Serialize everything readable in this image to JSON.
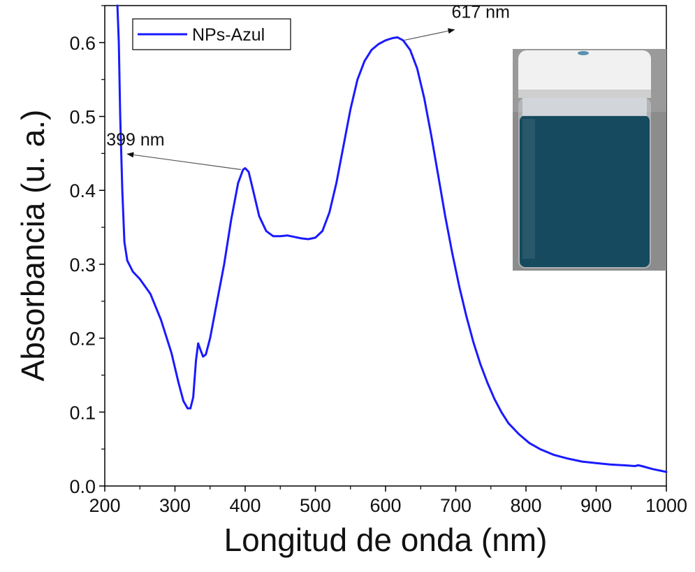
{
  "chart_data": {
    "type": "line",
    "xlabel": "Longitud de onda (nm)",
    "ylabel": "Absorbancia (u. a.)",
    "xlim": [
      200,
      1000
    ],
    "ylim": [
      0.0,
      0.65
    ],
    "x_ticks": [
      200,
      300,
      400,
      500,
      600,
      700,
      800,
      900,
      1000
    ],
    "x_tick_labels": [
      "200",
      "300",
      "400",
      "500",
      "600",
      "700",
      "800",
      "900",
      "1000"
    ],
    "y_ticks": [
      0.0,
      0.1,
      0.2,
      0.3,
      0.4,
      0.5,
      0.6
    ],
    "y_tick_labels": [
      "0.0",
      "0.1",
      "0.2",
      "0.3",
      "0.4",
      "0.5",
      "0.6"
    ],
    "grid": false,
    "legend_position": "top-left",
    "series": [
      {
        "name": "NPs-Azul",
        "color": "#1a1aff",
        "points": [
          [
            218,
            0.66
          ],
          [
            220,
            0.6
          ],
          [
            222,
            0.5
          ],
          [
            225,
            0.4
          ],
          [
            228,
            0.33
          ],
          [
            232,
            0.305
          ],
          [
            240,
            0.29
          ],
          [
            250,
            0.28
          ],
          [
            265,
            0.26
          ],
          [
            280,
            0.225
          ],
          [
            295,
            0.18
          ],
          [
            305,
            0.14
          ],
          [
            312,
            0.115
          ],
          [
            318,
            0.105
          ],
          [
            322,
            0.105
          ],
          [
            326,
            0.12
          ],
          [
            330,
            0.17
          ],
          [
            333,
            0.193
          ],
          [
            336,
            0.185
          ],
          [
            340,
            0.175
          ],
          [
            344,
            0.178
          ],
          [
            350,
            0.2
          ],
          [
            360,
            0.25
          ],
          [
            370,
            0.3
          ],
          [
            380,
            0.36
          ],
          [
            390,
            0.41
          ],
          [
            397,
            0.428
          ],
          [
            400,
            0.43
          ],
          [
            405,
            0.425
          ],
          [
            410,
            0.405
          ],
          [
            420,
            0.365
          ],
          [
            430,
            0.345
          ],
          [
            440,
            0.338
          ],
          [
            450,
            0.338
          ],
          [
            460,
            0.339
          ],
          [
            470,
            0.337
          ],
          [
            480,
            0.335
          ],
          [
            490,
            0.334
          ],
          [
            500,
            0.336
          ],
          [
            510,
            0.345
          ],
          [
            520,
            0.37
          ],
          [
            530,
            0.41
          ],
          [
            540,
            0.46
          ],
          [
            550,
            0.51
          ],
          [
            560,
            0.55
          ],
          [
            570,
            0.575
          ],
          [
            580,
            0.59
          ],
          [
            590,
            0.598
          ],
          [
            600,
            0.603
          ],
          [
            610,
            0.606
          ],
          [
            617,
            0.607
          ],
          [
            625,
            0.603
          ],
          [
            635,
            0.59
          ],
          [
            645,
            0.565
          ],
          [
            655,
            0.525
          ],
          [
            665,
            0.475
          ],
          [
            675,
            0.42
          ],
          [
            685,
            0.365
          ],
          [
            695,
            0.315
          ],
          [
            705,
            0.27
          ],
          [
            715,
            0.23
          ],
          [
            725,
            0.195
          ],
          [
            735,
            0.165
          ],
          [
            745,
            0.14
          ],
          [
            755,
            0.118
          ],
          [
            765,
            0.1
          ],
          [
            775,
            0.085
          ],
          [
            790,
            0.07
          ],
          [
            805,
            0.058
          ],
          [
            820,
            0.05
          ],
          [
            840,
            0.042
          ],
          [
            860,
            0.037
          ],
          [
            880,
            0.033
          ],
          [
            900,
            0.031
          ],
          [
            920,
            0.029
          ],
          [
            940,
            0.028
          ],
          [
            955,
            0.027
          ],
          [
            960,
            0.028
          ],
          [
            965,
            0.027
          ],
          [
            980,
            0.023
          ],
          [
            1000,
            0.019
          ]
        ]
      }
    ],
    "annotations": [
      {
        "text": "399 nm",
        "target": [
          400,
          0.43
        ],
        "label_at": [
          252,
          0.453
        ]
      },
      {
        "text": "617 nm",
        "target": [
          617,
          0.607
        ],
        "label_at": [
          706,
          0.625
        ]
      }
    ]
  },
  "inset_image": {
    "description_icon": "vial-photo",
    "liquid_color": "#164a5e",
    "cap_color": "#f1f1f1"
  }
}
